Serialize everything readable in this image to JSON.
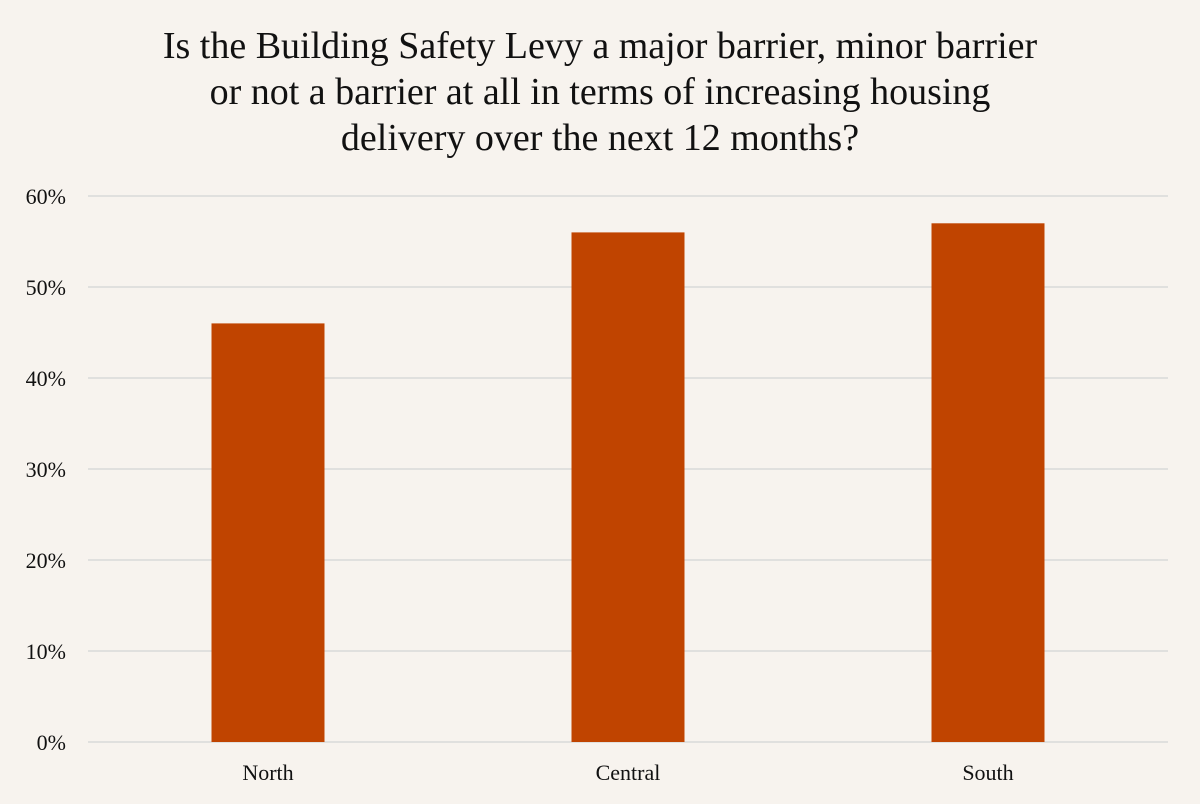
{
  "chart_data": {
    "type": "bar",
    "title_lines": [
      "Is the Building Safety Levy a major barrier, minor barrier",
      "or not a barrier at all in terms of increasing housing",
      "delivery over the next 12 months?"
    ],
    "categories": [
      "North",
      "Central",
      "South"
    ],
    "values": [
      46,
      56,
      57
    ],
    "ylim": [
      0,
      60
    ],
    "yticks": [
      0,
      10,
      20,
      30,
      40,
      50,
      60
    ],
    "ytick_labels": [
      "0%",
      "10%",
      "20%",
      "30%",
      "40%",
      "50%",
      "60%"
    ],
    "xlabel": "",
    "ylabel": "",
    "grid": true,
    "legend": "none",
    "bar_color": "#c04400",
    "grid_color": "#d9d9d9",
    "background_color": "#f7f3ee",
    "text_color": "#111111"
  }
}
